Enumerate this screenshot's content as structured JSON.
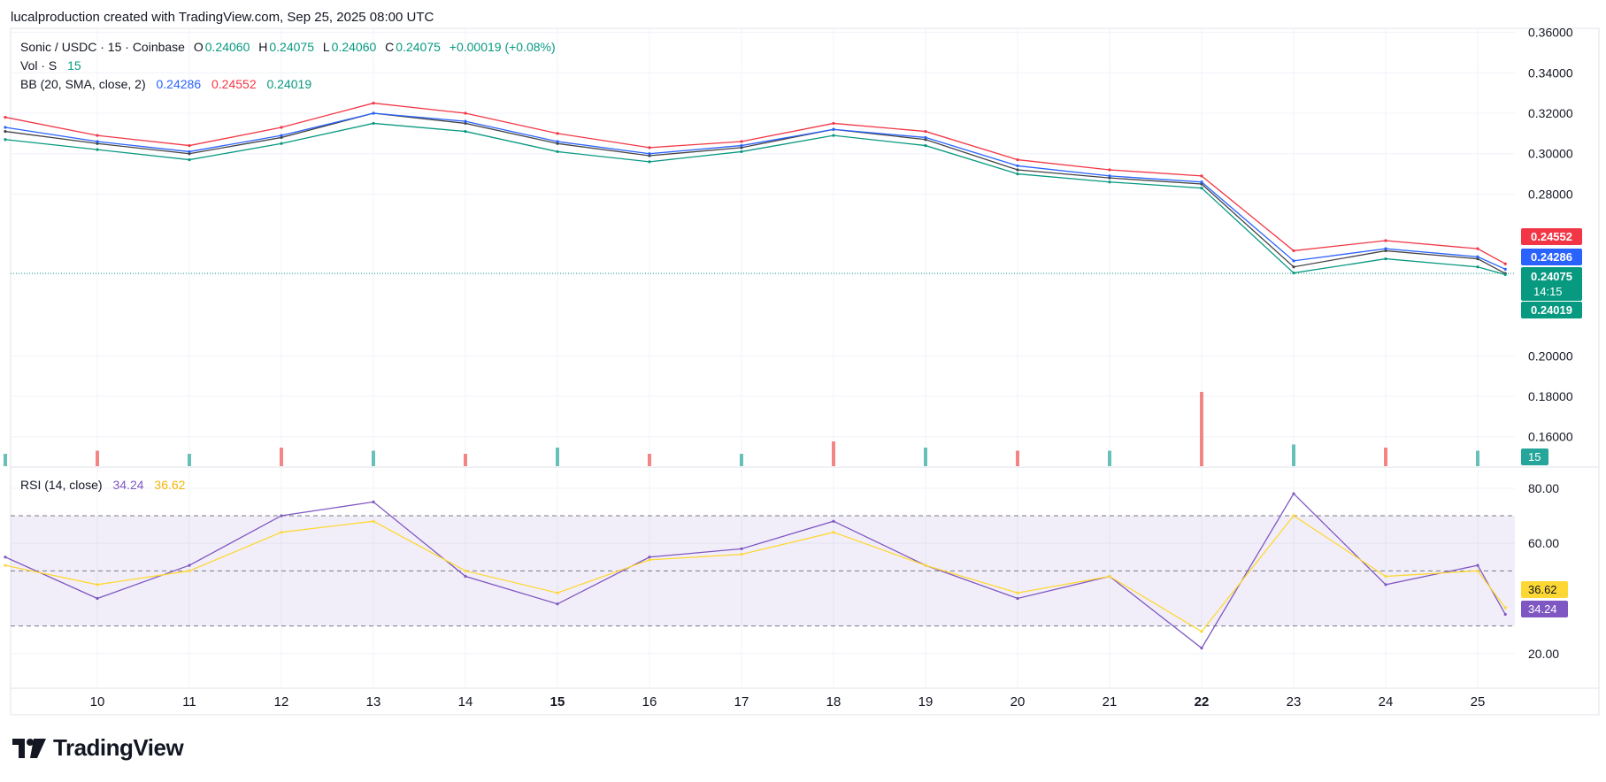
{
  "header": {
    "attribution": "lucalproduction created with TradingView.com, Sep 25, 2025 08:00 UTC"
  },
  "legend": {
    "symbol": "Sonic / USDC · 15 · Coinbase",
    "o_label": "O",
    "o_value": "0.24060",
    "h_label": "H",
    "h_value": "0.24075",
    "l_label": "L",
    "l_value": "0.24060",
    "c_label": "C",
    "c_value": "0.24075",
    "change": "+0.00019 (+0.08%)",
    "vol_label": "Vol · S",
    "vol_value": "15",
    "bb_label": "BB (20, SMA, close, 2)",
    "bb_basis": "0.24286",
    "bb_upper": "0.24552",
    "bb_lower": "0.24019",
    "rsi_label": "RSI (14, close)",
    "rsi_value": "34.24",
    "rsi_ma": "36.62"
  },
  "badges": {
    "bb_upper": "0.24552",
    "bb_basis": "0.24286",
    "price": "0.24075",
    "countdown": "14:15",
    "bb_lower": "0.24019",
    "volume": "15",
    "rsi_ma": "36.62",
    "rsi": "34.24"
  },
  "logo": {
    "text": "TradingView"
  },
  "colors": {
    "up": "#26a69a",
    "down": "#ef5350",
    "bb_basis": "#2962ff",
    "bb_upper": "#f23645",
    "bb_lower": "#089981",
    "rsi": "#7e57c2",
    "rsi_ma": "#fdd835",
    "price_badge": "#089981"
  },
  "chart_data": [
    {
      "type": "line",
      "title": "Sonic / USDC · 15 · Coinbase",
      "x": [
        "9",
        "10",
        "11",
        "12",
        "13",
        "14",
        "15",
        "16",
        "17",
        "18",
        "19",
        "20",
        "21",
        "22",
        "23",
        "24",
        "25",
        "25.3"
      ],
      "x_tick_labels": [
        "10",
        "11",
        "12",
        "13",
        "14",
        "15",
        "16",
        "17",
        "18",
        "19",
        "20",
        "21",
        "22",
        "23",
        "24",
        "25"
      ],
      "bold_ticks": [
        "15",
        "22"
      ],
      "y_tick_labels": [
        "0.36000",
        "0.34000",
        "0.32000",
        "0.30000",
        "0.28000",
        "0.20000",
        "0.18000",
        "0.16000"
      ],
      "ylim": [
        0.145,
        0.362
      ],
      "series": [
        {
          "name": "Close",
          "values": [
            0.311,
            0.305,
            0.3,
            0.308,
            0.32,
            0.315,
            0.305,
            0.299,
            0.303,
            0.312,
            0.307,
            0.292,
            0.288,
            0.285,
            0.244,
            0.252,
            0.248,
            0.24075
          ]
        },
        {
          "name": "BB upper",
          "values": [
            0.318,
            0.309,
            0.304,
            0.313,
            0.325,
            0.32,
            0.31,
            0.303,
            0.306,
            0.315,
            0.311,
            0.297,
            0.292,
            0.289,
            0.252,
            0.257,
            0.253,
            0.24552
          ]
        },
        {
          "name": "BB basis",
          "values": [
            0.313,
            0.306,
            0.301,
            0.309,
            0.32,
            0.316,
            0.306,
            0.3,
            0.304,
            0.312,
            0.308,
            0.294,
            0.289,
            0.286,
            0.247,
            0.253,
            0.249,
            0.24286
          ]
        },
        {
          "name": "BB lower",
          "values": [
            0.307,
            0.302,
            0.297,
            0.305,
            0.315,
            0.311,
            0.301,
            0.296,
            0.301,
            0.309,
            0.304,
            0.29,
            0.286,
            0.283,
            0.241,
            0.248,
            0.244,
            0.24019
          ]
        }
      ],
      "last_price": 0.24075
    },
    {
      "type": "bar",
      "title": "Vol · S",
      "x": [
        "9",
        "10",
        "11",
        "12",
        "13",
        "14",
        "15",
        "16",
        "17",
        "18",
        "19",
        "20",
        "21",
        "22",
        "23",
        "24",
        "25"
      ],
      "values": [
        4,
        5,
        4,
        6,
        5,
        4,
        6,
        4,
        4,
        8,
        6,
        5,
        5,
        24,
        7,
        6,
        5
      ],
      "last_value": 15
    },
    {
      "type": "line",
      "title": "RSI (14, close)",
      "y_tick_labels": [
        "80.00",
        "60.00",
        "20.00"
      ],
      "ylim": [
        10,
        87
      ],
      "bands": [
        30,
        50,
        70
      ],
      "x": [
        "9",
        "10",
        "11",
        "12",
        "13",
        "14",
        "15",
        "16",
        "17",
        "18",
        "19",
        "20",
        "21",
        "22",
        "23",
        "24",
        "25",
        "25.3"
      ],
      "series": [
        {
          "name": "RSI",
          "values": [
            55,
            40,
            52,
            70,
            75,
            48,
            38,
            55,
            58,
            68,
            52,
            40,
            48,
            22,
            78,
            45,
            52,
            34.24
          ]
        },
        {
          "name": "RSI MA",
          "values": [
            52,
            45,
            50,
            64,
            68,
            50,
            42,
            54,
            56,
            64,
            52,
            42,
            48,
            28,
            70,
            48,
            50,
            36.62
          ]
        }
      ]
    }
  ]
}
